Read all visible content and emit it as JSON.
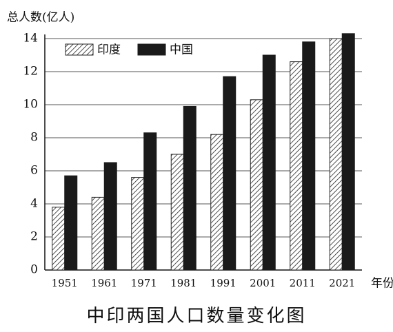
{
  "chart_data": {
    "type": "bar",
    "title": "中印两国人口数量变化图",
    "y_label": "总人数(亿人)",
    "x_label": "年份",
    "categories": [
      "1951",
      "1961",
      "1971",
      "1981",
      "1991",
      "2001",
      "2011",
      "2021"
    ],
    "series": [
      {
        "name": "印度",
        "color": "#222222",
        "hatch": true,
        "values": [
          3.8,
          4.4,
          5.6,
          7.0,
          8.2,
          10.3,
          12.6,
          14.0
        ]
      },
      {
        "name": "中国",
        "color": "#1a1a1a",
        "hatch": false,
        "values": [
          5.7,
          6.5,
          8.3,
          9.9,
          11.7,
          13.0,
          13.8,
          14.3
        ]
      }
    ],
    "ylim": [
      0,
      14
    ],
    "yticks": [
      0,
      2,
      4,
      6,
      8,
      10,
      12,
      14
    ],
    "grid": true,
    "legend": "top-left"
  }
}
